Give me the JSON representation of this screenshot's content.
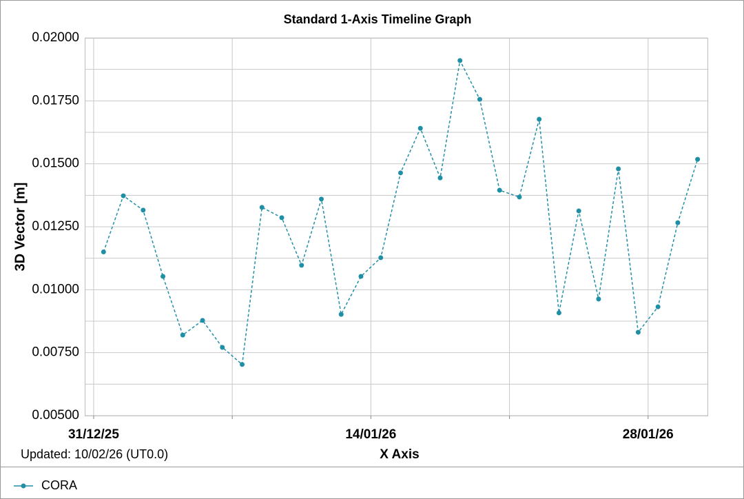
{
  "chart_data": {
    "type": "line",
    "title": "Standard 1-Axis Timeline Graph",
    "x_label": "X Axis",
    "y_label": "3D Vector [m]",
    "note": "Updated: 10/02/26 (UT0.0)",
    "x": [
      0.5,
      1.5,
      2.5,
      3.5,
      4.5,
      5.5,
      6.5,
      7.5,
      8.5,
      9.5,
      10.5,
      11.5,
      12.5,
      13.5,
      14.5,
      15.5,
      16.5,
      17.5,
      18.5,
      19.5,
      20.5,
      21.5,
      22.5,
      23.5,
      24.5,
      25.5,
      26.5,
      27.5,
      28.5,
      29.5,
      30.5
    ],
    "series": [
      {
        "name": "CORA",
        "color": "#1f8fa6",
        "values": [
          0.0115,
          0.01373,
          0.01316,
          0.01053,
          0.0082,
          0.00878,
          0.00771,
          0.00703,
          0.01327,
          0.01286,
          0.01097,
          0.0136,
          0.00902,
          0.01053,
          0.01127,
          0.01464,
          0.01641,
          0.01444,
          0.0191,
          0.01756,
          0.01395,
          0.01368,
          0.01677,
          0.00908,
          0.01313,
          0.00963,
          0.0148,
          0.00831,
          0.00932,
          0.01266,
          0.01518
        ]
      }
    ],
    "xlim": [
      -0.45,
      31
    ],
    "xticks": [
      {
        "value": 0,
        "label": "31/12/25"
      },
      {
        "value": 14,
        "label": "14/01/26"
      },
      {
        "value": 28,
        "label": "28/01/26"
      }
    ],
    "xminor": [
      7,
      21
    ],
    "ylim": [
      0.005,
      0.02
    ],
    "yticks": [
      {
        "value": 0.005,
        "label": "0.00500"
      },
      {
        "value": 0.0075,
        "label": "0.00750"
      },
      {
        "value": 0.01,
        "label": "0.01000"
      },
      {
        "value": 0.0125,
        "label": "0.01250"
      },
      {
        "value": 0.015,
        "label": "0.01500"
      },
      {
        "value": 0.0175,
        "label": "0.01750"
      },
      {
        "value": 0.02,
        "label": "0.02000"
      }
    ],
    "yminor": [
      0.00625,
      0.00875,
      0.01125,
      0.01375,
      0.01625,
      0.01875
    ],
    "grid": true,
    "legend": "bottom-left"
  }
}
